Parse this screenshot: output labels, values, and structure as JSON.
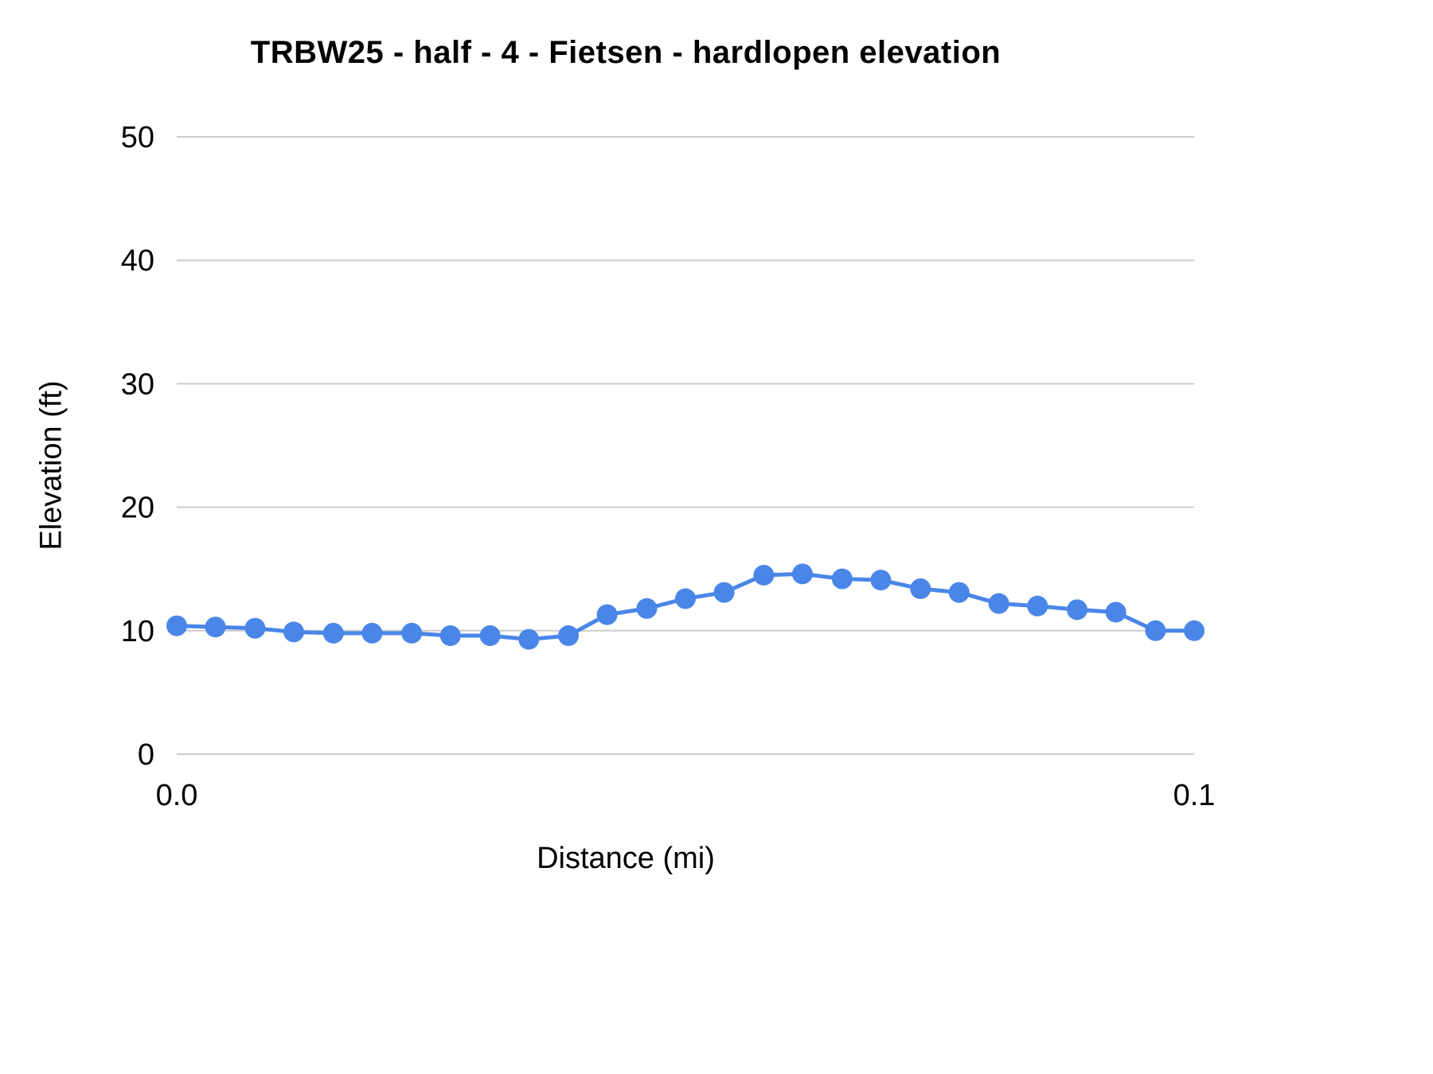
{
  "chart_data": {
    "type": "line",
    "title": "TRBW25 - half - 4 - Fietsen - hardlopen elevation",
    "xlabel": "Distance (mi)",
    "ylabel": "Elevation (ft)",
    "xlim": [
      0,
      0.1
    ],
    "ylim": [
      0,
      50
    ],
    "x_ticks": [
      "0.0",
      "0.1"
    ],
    "x_tick_values": [
      0,
      0.1
    ],
    "y_ticks": [
      0,
      10,
      20,
      30,
      40,
      50
    ],
    "grid": "horizontal",
    "legend": "none",
    "line_color": "#4a86e8",
    "marker_color": "#4a86e8",
    "gridline_color": "#cccccc",
    "text_color": "#000000",
    "x": [
      0,
      0.0038,
      0.0077,
      0.0115,
      0.0154,
      0.0192,
      0.0231,
      0.0269,
      0.0308,
      0.0346,
      0.0385,
      0.0423,
      0.0462,
      0.05,
      0.0538,
      0.0577,
      0.0615,
      0.0654,
      0.0692,
      0.0731,
      0.0769,
      0.0808,
      0.0846,
      0.0885,
      0.0923,
      0.0962,
      0.1
    ],
    "y": [
      10.4,
      10.3,
      10.2,
      9.9,
      9.8,
      9.8,
      9.8,
      9.6,
      9.6,
      9.3,
      9.6,
      11.3,
      11.8,
      12.6,
      13.1,
      14.5,
      14.6,
      14.2,
      14.1,
      13.4,
      13.1,
      12.2,
      12.0,
      11.7,
      11.5,
      10.0,
      10.0
    ]
  }
}
